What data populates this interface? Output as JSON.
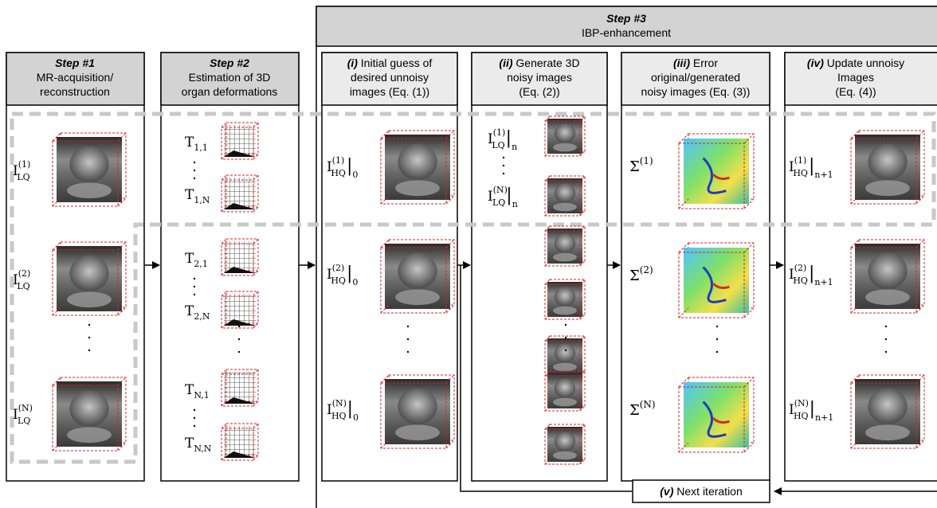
{
  "step3": {
    "title": "Step #3",
    "subtitle": "IBP-enhancement"
  },
  "step1": {
    "title": "Step #1",
    "line1": "MR-acquisition/",
    "line2": "reconstruction"
  },
  "step2": {
    "title": "Step #2",
    "line1": "Estimation of 3D",
    "line2": "organ deformations"
  },
  "sub_i": {
    "tag": "(i)",
    "line1": " Initial guess of",
    "line2": "desired unnoisy",
    "line3": "images (Eq. (1))"
  },
  "sub_ii": {
    "tag": "(ii)",
    "line1": " Generate 3D",
    "line2": "noisy images",
    "line3": "(Eq. (2))"
  },
  "sub_iii": {
    "tag": "(iii)",
    "line1": " Error",
    "line2": "original/generated",
    "line3": "noisy images (Eq. (3))"
  },
  "sub_iv": {
    "tag": "(iv)",
    "line1": " Update unnoisy",
    "line2": "Images",
    "line3": "(Eq. (4))"
  },
  "next_iteration": {
    "tag": "(v)",
    "label": " Next iteration"
  },
  "labels": {
    "step1": [
      {
        "base": "I",
        "sup": "(1)",
        "sub": "LQ"
      },
      {
        "base": "I",
        "sup": "(2)",
        "sub": "LQ"
      },
      {
        "base": "I",
        "sup": "(N)",
        "sub": "LQ"
      }
    ],
    "step2": [
      {
        "base": "T",
        "sub": "1,1"
      },
      {
        "base": "T",
        "sub": "1,N"
      },
      {
        "base": "T",
        "sub": "2,1"
      },
      {
        "base": "T",
        "sub": "2,N"
      },
      {
        "base": "T",
        "sub": "N,1"
      },
      {
        "base": "T",
        "sub": "N,N"
      }
    ],
    "sub_i": [
      {
        "base": "I",
        "sup": "(1)",
        "sub": "HQ",
        "eval": "0"
      },
      {
        "base": "I",
        "sup": "(2)",
        "sub": "HQ",
        "eval": "0"
      },
      {
        "base": "I",
        "sup": "(N)",
        "sub": "HQ",
        "eval": "0"
      }
    ],
    "sub_ii": [
      {
        "base": "I",
        "sup": "(1)",
        "sub": "LQ",
        "eval": "n"
      },
      {
        "base": "I",
        "sup": "(N)",
        "sub": "LQ",
        "eval": "n"
      }
    ],
    "sub_iii": [
      {
        "base": "Σ",
        "sup": "(1)"
      },
      {
        "base": "Σ",
        "sup": "(2)"
      },
      {
        "base": "Σ",
        "sup": "(N)"
      }
    ],
    "sub_iv": [
      {
        "base": "I",
        "sup": "(1)",
        "sub": "HQ",
        "eval": "n+1"
      },
      {
        "base": "I",
        "sup": "(2)",
        "sub": "HQ",
        "eval": "n+1"
      },
      {
        "base": "I",
        "sup": "(N)",
        "sub": "HQ",
        "eval": "n+1"
      }
    ]
  },
  "colors": {
    "header_bg": "#d3d3d3",
    "dashed_outline": "#c8c8c8",
    "cube_outline": "#e02020",
    "error_map": "#5fd06a"
  }
}
